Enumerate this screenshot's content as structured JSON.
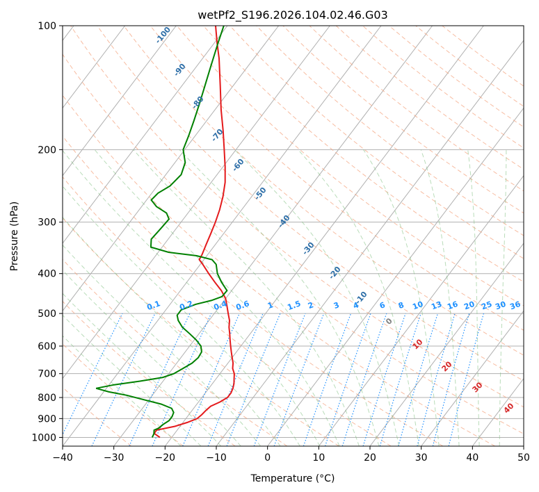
{
  "chart_data": {
    "type": "line",
    "title": "wetPf2_S196.2026.104.02.46.G03",
    "xlabel": "Temperature (°C)",
    "ylabel": "Pressure (hPa)",
    "xlim": [
      -40,
      50
    ],
    "ylim": [
      1050,
      100
    ],
    "y_scale": "log",
    "grid": true,
    "skew": true,
    "x_ticks": [
      -40,
      -30,
      -20,
      -10,
      0,
      10,
      20,
      30,
      40,
      50
    ],
    "y_ticks": [
      100,
      200,
      300,
      400,
      500,
      600,
      700,
      800,
      900,
      1000
    ],
    "series": [
      {
        "color": "#e41a1c",
        "points": [
          [
            1000,
            -22.3
          ],
          [
            978,
            -24.0
          ],
          [
            960,
            -24.0
          ],
          [
            940,
            -21.0
          ],
          [
            920,
            -19.2
          ],
          [
            900,
            -17.8
          ],
          [
            880,
            -17.5
          ],
          [
            860,
            -17.3
          ],
          [
            840,
            -17.0
          ],
          [
            820,
            -15.8
          ],
          [
            800,
            -15.0
          ],
          [
            780,
            -15.0
          ],
          [
            760,
            -15.3
          ],
          [
            740,
            -15.8
          ],
          [
            720,
            -16.5
          ],
          [
            700,
            -17.2
          ],
          [
            680,
            -18.3
          ],
          [
            660,
            -19.0
          ],
          [
            640,
            -20.0
          ],
          [
            620,
            -21.0
          ],
          [
            600,
            -22.0
          ],
          [
            580,
            -23.0
          ],
          [
            560,
            -24.0
          ],
          [
            540,
            -25.1
          ],
          [
            520,
            -26.0
          ],
          [
            500,
            -27.3
          ],
          [
            480,
            -28.6
          ],
          [
            460,
            -30.0
          ],
          [
            440,
            -32.0
          ],
          [
            420,
            -34.5
          ],
          [
            400,
            -37.0
          ],
          [
            380,
            -39.5
          ],
          [
            370,
            -40.9
          ],
          [
            360,
            -41.1
          ],
          [
            340,
            -41.8
          ],
          [
            320,
            -42.5
          ],
          [
            300,
            -43.3
          ],
          [
            280,
            -44.3
          ],
          [
            260,
            -45.6
          ],
          [
            240,
            -47.3
          ],
          [
            220,
            -49.6
          ],
          [
            200,
            -52.3
          ],
          [
            180,
            -55.3
          ],
          [
            160,
            -58.8
          ],
          [
            140,
            -62.5
          ],
          [
            120,
            -66.8
          ],
          [
            110,
            -69.5
          ],
          [
            100,
            -72.3
          ]
        ]
      },
      {
        "color": "#008000",
        "points": [
          [
            1000,
            -23.8
          ],
          [
            980,
            -24.0
          ],
          [
            960,
            -24.5
          ],
          [
            950,
            -23.9
          ],
          [
            930,
            -23.6
          ],
          [
            910,
            -23.0
          ],
          [
            890,
            -23.0
          ],
          [
            870,
            -23.3
          ],
          [
            850,
            -24.3
          ],
          [
            830,
            -27.0
          ],
          [
            810,
            -31.0
          ],
          [
            790,
            -35.0
          ],
          [
            775,
            -39.0
          ],
          [
            760,
            -42.0
          ],
          [
            745,
            -39.0
          ],
          [
            730,
            -34.5
          ],
          [
            715,
            -30.6
          ],
          [
            700,
            -29.0
          ],
          [
            680,
            -28.0
          ],
          [
            660,
            -27.0
          ],
          [
            640,
            -26.6
          ],
          [
            620,
            -26.8
          ],
          [
            600,
            -27.8
          ],
          [
            580,
            -29.6
          ],
          [
            560,
            -31.8
          ],
          [
            540,
            -34.2
          ],
          [
            520,
            -36.0
          ],
          [
            505,
            -37.0
          ],
          [
            490,
            -37.0
          ],
          [
            475,
            -35.0
          ],
          [
            465,
            -32.5
          ],
          [
            455,
            -31.0
          ],
          [
            440,
            -30.9
          ],
          [
            420,
            -33.2
          ],
          [
            400,
            -35.3
          ],
          [
            380,
            -36.9
          ],
          [
            370,
            -38.4
          ],
          [
            362,
            -42.0
          ],
          [
            355,
            -48.0
          ],
          [
            345,
            -52.2
          ],
          [
            330,
            -53.3
          ],
          [
            310,
            -53.0
          ],
          [
            295,
            -52.8
          ],
          [
            285,
            -54.2
          ],
          [
            275,
            -57.1
          ],
          [
            265,
            -59.1
          ],
          [
            255,
            -58.8
          ],
          [
            245,
            -57.5
          ],
          [
            230,
            -57.0
          ],
          [
            215,
            -58.0
          ],
          [
            200,
            -60.3
          ],
          [
            185,
            -61.3
          ],
          [
            170,
            -62.5
          ],
          [
            155,
            -63.9
          ],
          [
            140,
            -65.5
          ],
          [
            125,
            -67.3
          ],
          [
            110,
            -69.3
          ],
          [
            100,
            -70.7
          ]
        ]
      }
    ],
    "dry_adiabat_labels": [
      "-100",
      "-90",
      "-80",
      "-70",
      "-60",
      "-50",
      "-40",
      "-30",
      "-20",
      "-10"
    ],
    "mixing_ratio_labels": [
      "0.1",
      "0.2",
      "0.4",
      "0.6",
      "1",
      "1.5",
      "2",
      "3",
      "4",
      "6",
      "8",
      "10",
      "13",
      "16",
      "20",
      "25",
      "30",
      "36"
    ],
    "moist_adiabat_labels": [
      "0",
      "10",
      "20",
      "30",
      "40"
    ]
  }
}
